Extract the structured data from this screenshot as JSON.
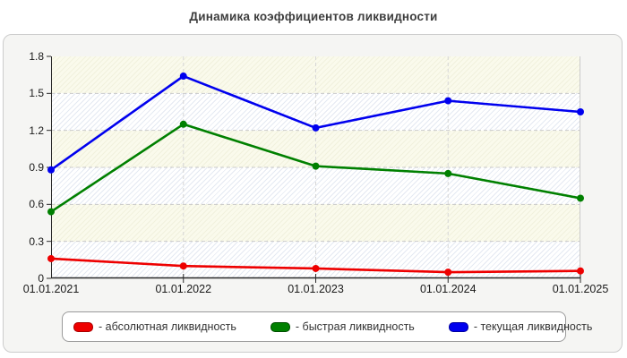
{
  "page": {
    "title": "Динамика коэффициентов ликвидности"
  },
  "chart_data": {
    "type": "line",
    "title": "Динамика коэффициентов ликвидности",
    "categories": [
      "01.01.2021",
      "01.01.2022",
      "01.01.2023",
      "01.01.2024",
      "01.01.2025"
    ],
    "series": [
      {
        "key": "absolute-liquidity",
        "name": "абсолютная ликвидность",
        "legend_label": "- абсолютная ликвидность",
        "color": "#ee0000",
        "swatch_border": "#a80000",
        "values": [
          0.16,
          0.1,
          0.08,
          0.05,
          0.06
        ]
      },
      {
        "key": "quick-liquidity",
        "name": "быстрая ликвидность",
        "legend_label": "- быстрая ликвидность",
        "color": "#008000",
        "swatch_border": "#004d00",
        "values": [
          0.54,
          1.25,
          0.91,
          0.85,
          0.65
        ]
      },
      {
        "key": "current-liquidity",
        "name": "текущая ликвидность",
        "legend_label": "- текущая ликвидность",
        "color": "#0000ee",
        "swatch_border": "#0000a0",
        "values": [
          0.88,
          1.64,
          1.22,
          1.44,
          1.35
        ]
      }
    ],
    "yticks": [
      0,
      0.3,
      0.6,
      0.9,
      1.2,
      1.5,
      1.8
    ],
    "ylim": [
      0,
      1.8
    ],
    "xlabel": "",
    "ylabel": "",
    "grid": "dashed",
    "legend_position": "bottom",
    "colors": {
      "axis": "#2a2a2a",
      "grid": "#c9c9c9",
      "band_cream": "#fafaec",
      "band_white": "#ffffff",
      "panel_bg": "#f5f5f3",
      "title_text": "#3d3d3d"
    }
  }
}
